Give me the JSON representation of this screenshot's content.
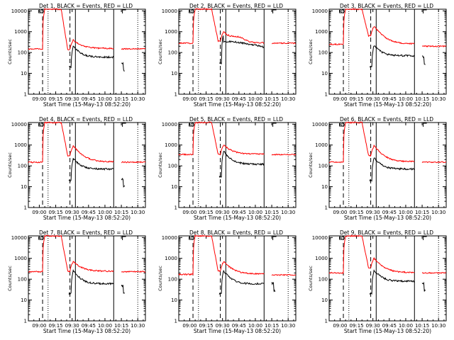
{
  "chart_data": {
    "type": "line",
    "panels": [
      {
        "title": "Det 1, BLACK = Events, RED = LLD",
        "red_base": 150,
        "red_peak": 400,
        "black_mid": 80,
        "black_end": 60,
        "black_dip": 20,
        "tail_red": 150,
        "tail_black": 20
      },
      {
        "title": "Det 2, BLACK = Events, RED = LLD",
        "red_base": 280,
        "red_peak": 1000,
        "black_mid": 330,
        "black_end": 180,
        "black_dip": 30,
        "tail_red": 280,
        "tail_black": 0,
        "red_bump": true,
        "black_flat": true
      },
      {
        "title": "Det 3, BLACK = Events, RED = LLD",
        "red_base": 250,
        "red_peak": 1800,
        "black_mid": 90,
        "black_end": 70,
        "black_dip": 20,
        "tail_red": 200,
        "tail_black": 40
      },
      {
        "title": "Det 4, BLACK = Events, RED = LLD",
        "red_base": 150,
        "red_peak": 900,
        "black_mid": 90,
        "black_end": 70,
        "black_dip": 20,
        "tail_red": 150,
        "tail_black": 15
      },
      {
        "title": "Det 5, BLACK = Events, RED = LLD",
        "red_base": 350,
        "red_peak": 1000,
        "black_mid": 200,
        "black_end": 120,
        "black_dip": 30,
        "tail_red": 350,
        "tail_black": 0
      },
      {
        "title": "Det 6, BLACK = Events, RED = LLD",
        "red_base": 150,
        "red_peak": 900,
        "black_mid": 100,
        "black_end": 70,
        "black_dip": 20,
        "tail_red": 150,
        "tail_black": 0
      },
      {
        "title": "Det 7, BLACK = Events, RED = LLD",
        "red_base": 230,
        "red_peak": 700,
        "black_mid": 100,
        "black_end": 60,
        "black_dip": 20,
        "tail_red": 230,
        "tail_black": 30
      },
      {
        "title": "Det 8, BLACK = Events, RED = LLD",
        "red_base": 170,
        "red_peak": 700,
        "black_mid": 100,
        "black_end": 60,
        "black_dip": 20,
        "tail_red": 160,
        "tail_black": 40
      },
      {
        "title": "Det 9, BLACK = Events, RED = LLD",
        "red_base": 200,
        "red_peak": 1000,
        "black_mid": 110,
        "black_end": 80,
        "black_dip": 20,
        "tail_red": 200,
        "tail_black": 40
      }
    ],
    "x_ticks": [
      "09:00",
      "09:15",
      "09:30",
      "09:45",
      "10:00",
      "10:15",
      "10:30"
    ],
    "x_tick_minutes": [
      0,
      15,
      30,
      45,
      60,
      75,
      90
    ],
    "x_range_minutes": [
      -10,
      97
    ],
    "xlabel": "Start Time (15-May-13 08:52:20)",
    "ylabel": "Counts/sec",
    "y_ticks": [
      "1",
      "10",
      "100",
      "1000",
      "10000"
    ],
    "ylim": [
      1,
      12000
    ],
    "y_scale": "log",
    "dashed_markers_minutes": [
      3,
      28
    ],
    "dotted_markers_minutes": [
      8,
      90
    ],
    "solid_markers_minutes": [
      33
    ],
    "data_gap_minutes": [
      68,
      75
    ],
    "series": [
      {
        "name": "Events",
        "color": "#000000"
      },
      {
        "name": "LLD",
        "color": "#ff0000"
      }
    ]
  }
}
